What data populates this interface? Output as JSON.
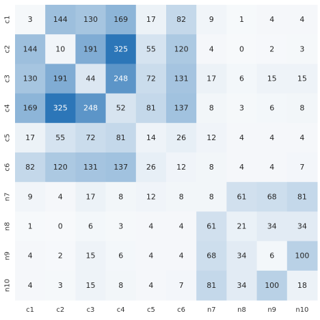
{
  "chart_data": {
    "type": "heatmap",
    "x_categories": [
      "c1",
      "c2",
      "c3",
      "c4",
      "c5",
      "c6",
      "n7",
      "n8",
      "n9",
      "n10"
    ],
    "y_categories": [
      "c1",
      "c2",
      "c3",
      "c4",
      "c5",
      "c6",
      "n7",
      "n8",
      "n9",
      "n10"
    ],
    "values": [
      [
        3,
        144,
        130,
        169,
        17,
        82,
        9,
        1,
        4,
        4
      ],
      [
        144,
        10,
        191,
        325,
        55,
        120,
        4,
        0,
        2,
        3
      ],
      [
        130,
        191,
        44,
        248,
        72,
        131,
        17,
        6,
        15,
        15
      ],
      [
        169,
        325,
        248,
        52,
        81,
        137,
        8,
        3,
        6,
        8
      ],
      [
        17,
        55,
        72,
        81,
        14,
        26,
        12,
        4,
        4,
        4
      ],
      [
        82,
        120,
        131,
        137,
        26,
        12,
        8,
        4,
        4,
        7
      ],
      [
        9,
        4,
        17,
        8,
        12,
        8,
        8,
        61,
        68,
        81
      ],
      [
        1,
        0,
        6,
        3,
        4,
        4,
        61,
        21,
        34,
        34
      ],
      [
        4,
        2,
        15,
        6,
        4,
        4,
        68,
        34,
        6,
        100
      ],
      [
        4,
        3,
        15,
        8,
        4,
        7,
        81,
        34,
        100,
        18
      ]
    ],
    "value_range": [
      0,
      325
    ],
    "colormap": {
      "low": "#f7f9fb",
      "high": "#2c76b8"
    },
    "title": "",
    "xlabel": "",
    "ylabel": "",
    "grid": false,
    "colorbar": false
  }
}
